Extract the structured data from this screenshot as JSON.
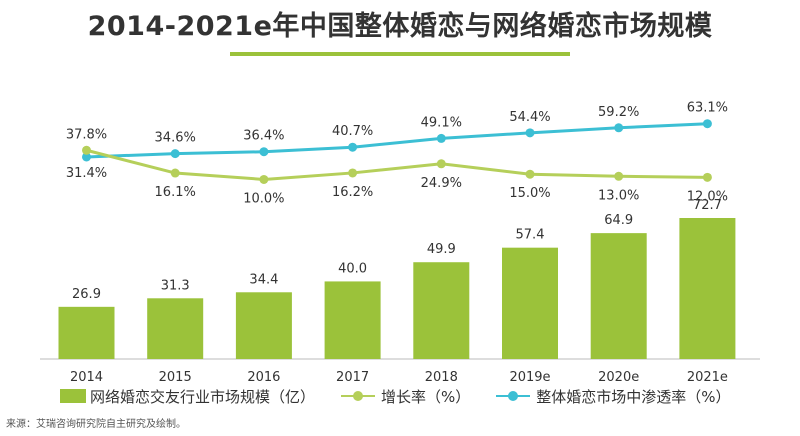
{
  "title": "2014-2021e年中国整体婚恋与网络婚恋市场规模",
  "source": "来源：艾瑞咨询研究院自主研究及绘制。",
  "colors": {
    "bar": "#9bc23a",
    "growth": "#b5cf5a",
    "penetration": "#3cbfd4",
    "text": "#333333",
    "axis": "#bbbbbb"
  },
  "chart_data": {
    "type": "bar",
    "categories": [
      "2014",
      "2015",
      "2016",
      "2017",
      "2018",
      "2019e",
      "2020e",
      "2021e"
    ],
    "series": [
      {
        "name": "网络婚恋交友行业市场规模（亿）",
        "type": "bar",
        "values": [
          26.9,
          31.3,
          34.4,
          40.0,
          49.9,
          57.4,
          64.9,
          72.7
        ],
        "labels": [
          "26.9",
          "31.3",
          "34.4",
          "40.0",
          "49.9",
          "57.4",
          "64.9",
          "72.7"
        ]
      },
      {
        "name": "增长率（%）",
        "type": "line",
        "values": [
          37.8,
          16.1,
          10.0,
          16.2,
          24.9,
          15.0,
          13.0,
          12.0
        ],
        "labels": [
          "37.8%",
          "16.1%",
          "10.0%",
          "16.2%",
          "24.9%",
          "15.0%",
          "13.0%",
          "12.0%"
        ]
      },
      {
        "name": "整体婚恋市场中渗透率（%）",
        "type": "line",
        "values": [
          31.4,
          34.6,
          36.4,
          40.7,
          49.1,
          54.4,
          59.2,
          63.1
        ],
        "labels": [
          "31.4%",
          "34.6%",
          "36.4%",
          "40.7%",
          "49.1%",
          "54.4%",
          "59.2%",
          "63.1%"
        ]
      }
    ],
    "legend_position": "bottom",
    "grid": false
  }
}
